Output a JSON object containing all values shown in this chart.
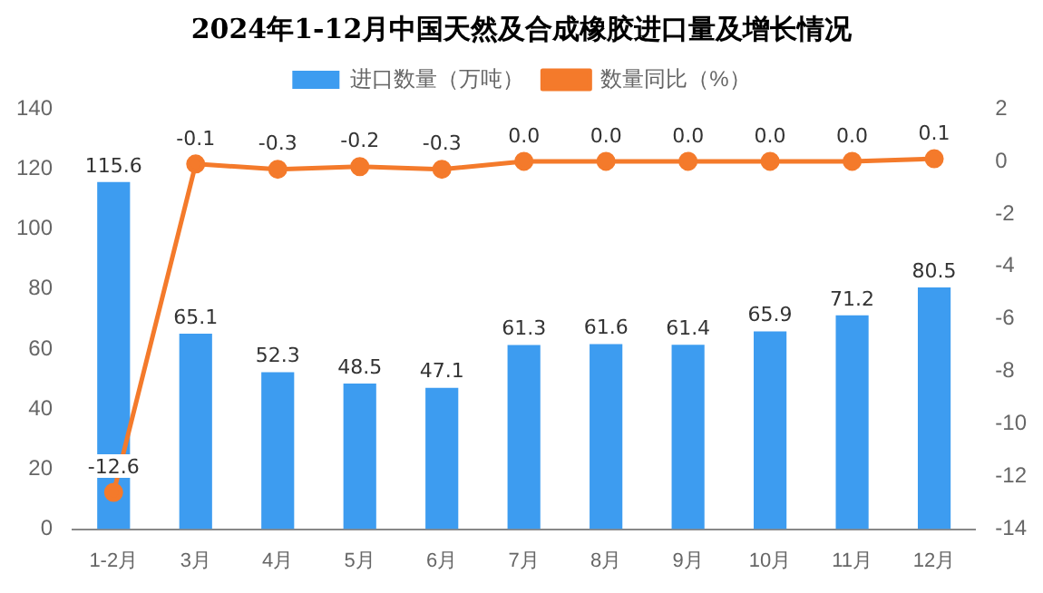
{
  "chart_data": {
    "type": "bar",
    "title": "2024年1-12月中国天然及合成橡胶进口量及增长情况",
    "categories": [
      "1-2月",
      "3月",
      "4月",
      "5月",
      "6月",
      "7月",
      "8月",
      "9月",
      "10月",
      "11月",
      "12月"
    ],
    "series": [
      {
        "name": "进口数量（万吨）",
        "color": "#3d9cf0",
        "values": [
          115.6,
          65.1,
          52.3,
          48.5,
          47.1,
          61.3,
          61.6,
          61.4,
          65.9,
          71.2,
          80.5
        ],
        "value_labels": [
          "115.6",
          "65.1",
          "52.3",
          "48.5",
          "47.1",
          "61.3",
          "61.6",
          "61.4",
          "65.9",
          "71.2",
          "80.5"
        ]
      },
      {
        "name": "数量同比（%）",
        "type": "line",
        "axis": "y2",
        "color": "#f47a2b",
        "values": [
          -12.6,
          -0.1,
          -0.3,
          -0.2,
          -0.3,
          0.0,
          0.0,
          0.0,
          0.0,
          0.0,
          0.1
        ],
        "value_labels": [
          "-12.6",
          "-0.1",
          "-0.3",
          "-0.2",
          "-0.3",
          "0.0",
          "0.0",
          "0.0",
          "0.0",
          "0.0",
          "0.1"
        ]
      }
    ],
    "ylim": [
      0,
      140
    ],
    "yticks": [
      0,
      20,
      40,
      60,
      80,
      100,
      120,
      140
    ],
    "y2lim": [
      -14,
      2
    ],
    "y2ticks": [
      -14,
      -12,
      -10,
      -8,
      -6,
      -4,
      -2,
      0,
      2
    ],
    "grid": false,
    "legend": "top",
    "marker": "circle",
    "line_style": "solid"
  }
}
